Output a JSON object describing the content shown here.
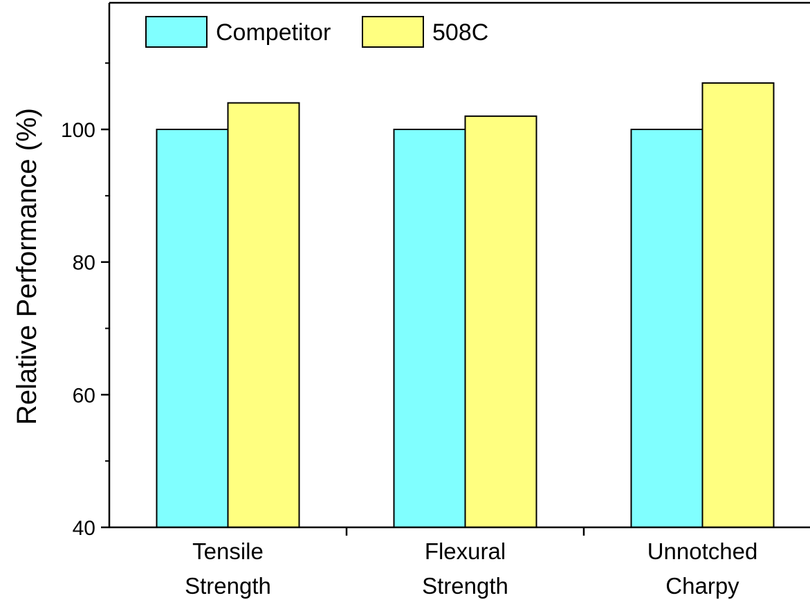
{
  "chart_data": {
    "type": "bar",
    "categories": [
      [
        "Tensile",
        "Strength"
      ],
      [
        "Flexural",
        "Strength"
      ],
      [
        "Unnotched",
        "Charpy"
      ]
    ],
    "series": [
      {
        "name": "Competitor",
        "values": [
          100,
          100,
          100
        ],
        "color": "#80FFFF"
      },
      {
        "name": "508C",
        "values": [
          104,
          102,
          107
        ],
        "color": "#FFFF80"
      }
    ],
    "xlabel": "",
    "ylabel": "Relative Performance (%)",
    "ylim": [
      40,
      120
    ],
    "yticks": [
      40,
      60,
      80,
      100
    ],
    "grid": false,
    "legend_position": "top-left"
  }
}
